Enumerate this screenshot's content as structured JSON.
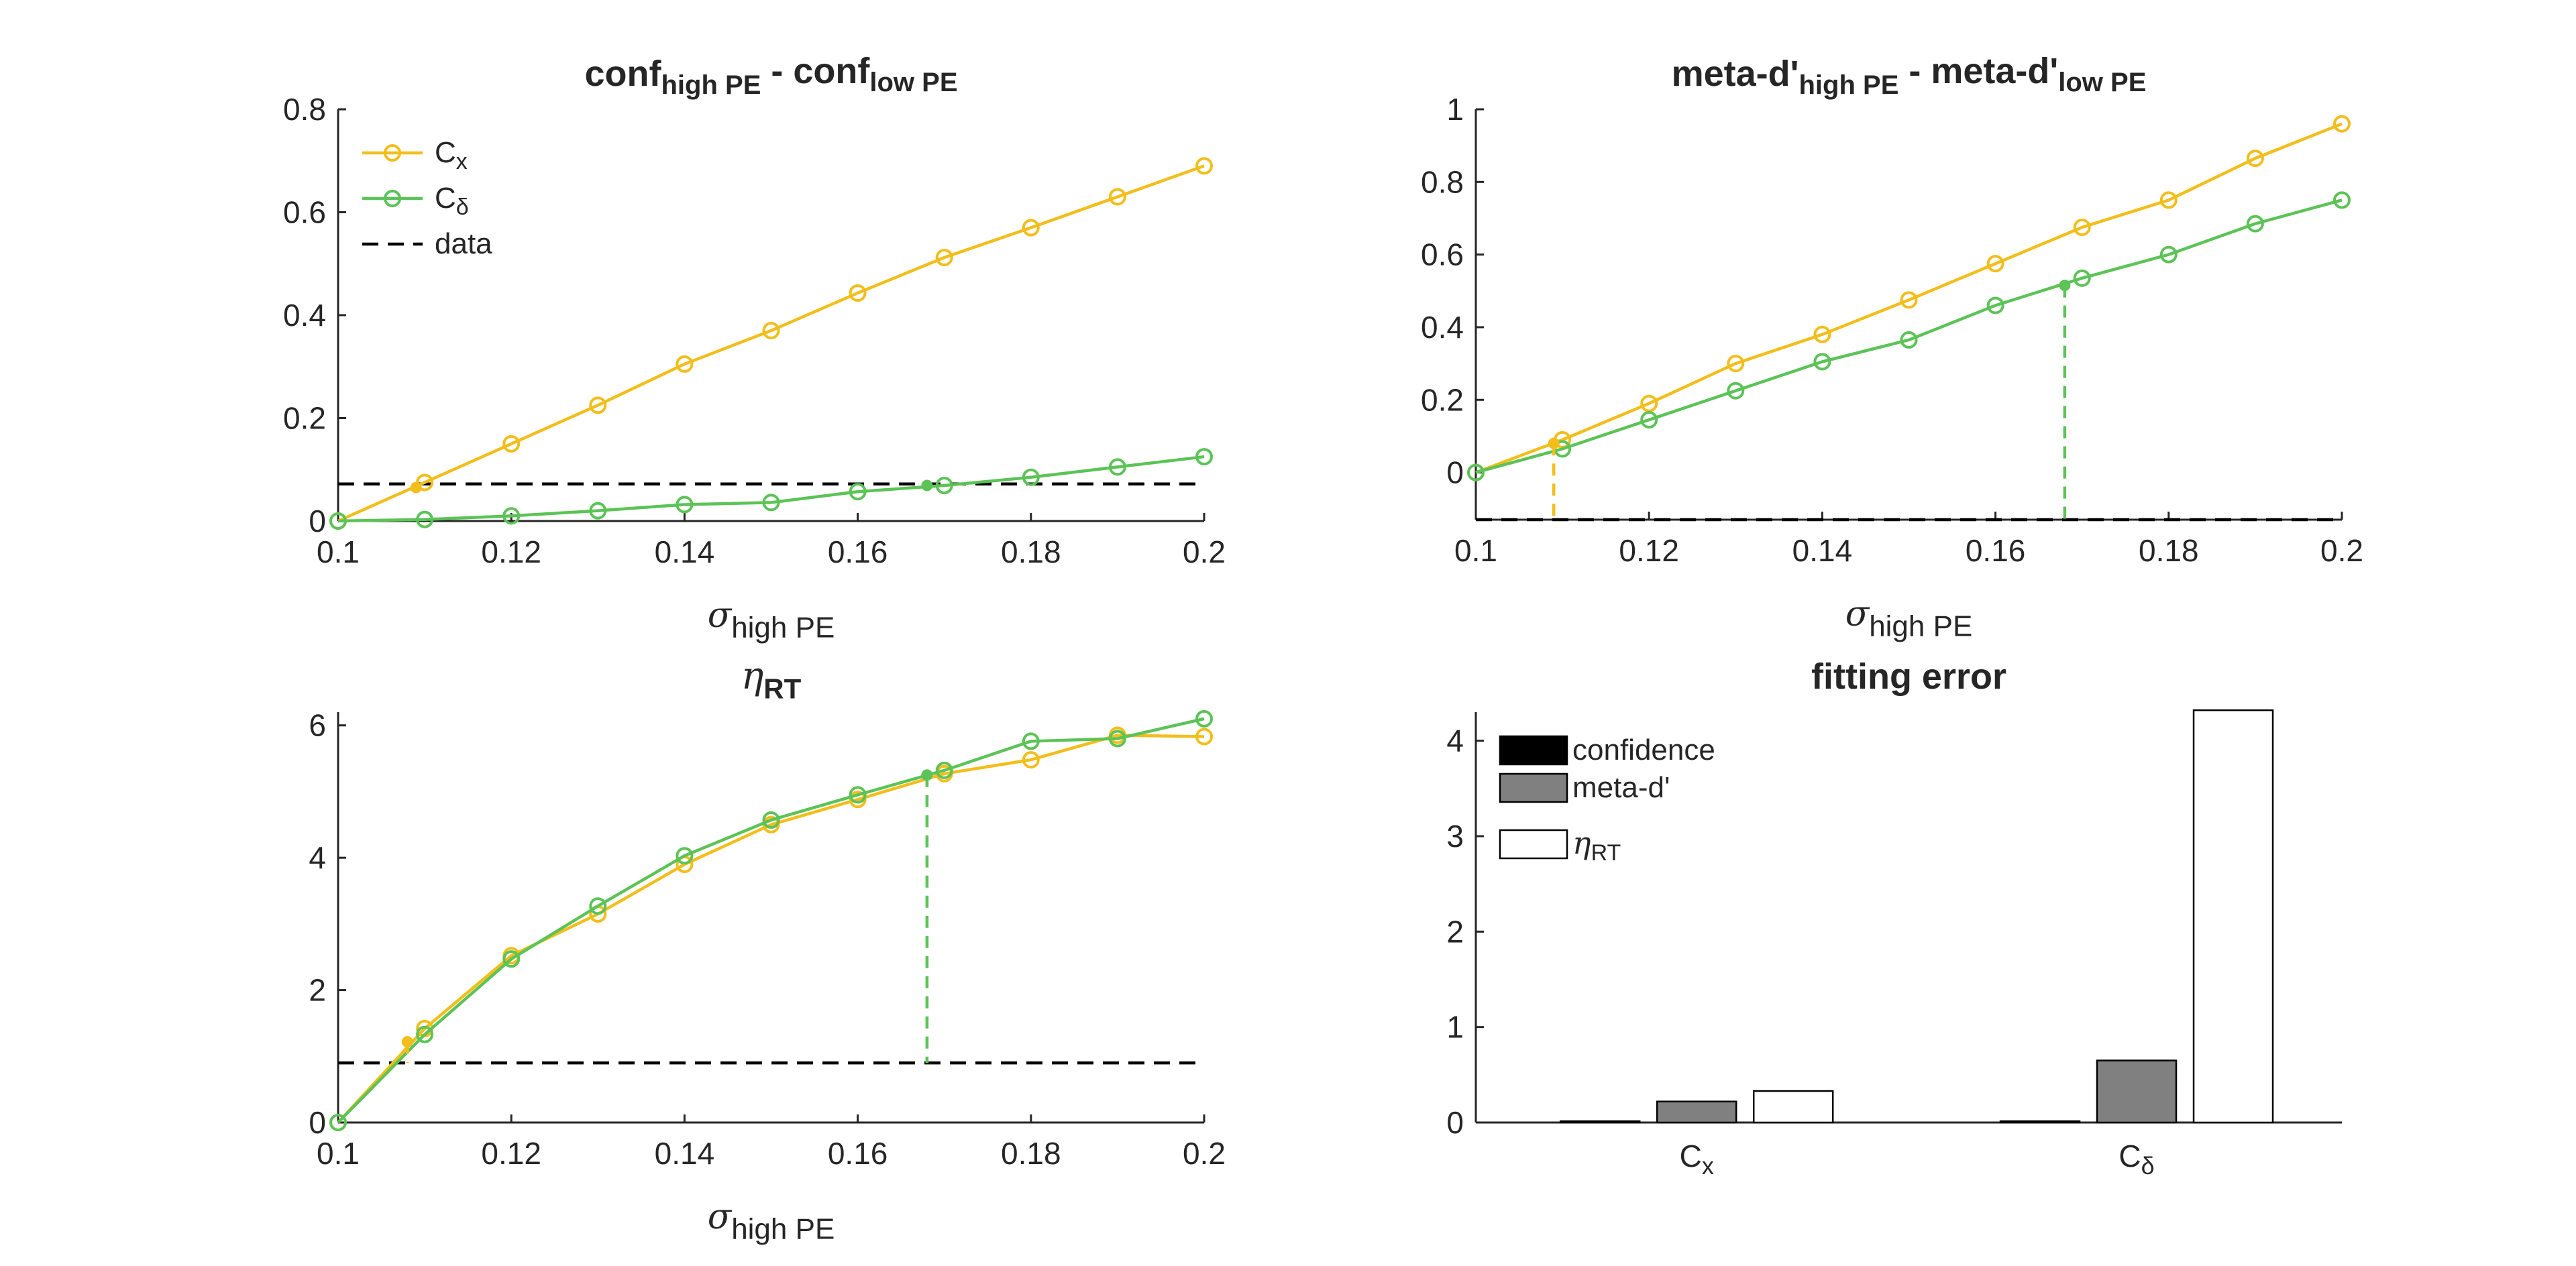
{
  "colors": {
    "cx": "#F2BE1B",
    "cdelta": "#5CC357",
    "data_line": "#000000",
    "bar_confidence": "#000000",
    "bar_metad": "#808080",
    "bar_eta": "#ffffff",
    "axis": "#262626"
  },
  "chart_data": [
    {
      "id": "conf",
      "type": "line",
      "title": {
        "main": "conf",
        "sub1": "high PE",
        "mid": " - conf",
        "sub2": "low PE"
      },
      "xlabel": {
        "sym": "σ",
        "sub": "high PE"
      },
      "ylabel": "",
      "xlim": [
        0.1,
        0.2
      ],
      "ylim": [
        0,
        0.8
      ],
      "xticks": [
        "0.1",
        "0.12",
        "0.14",
        "0.16",
        "0.18",
        "0.2"
      ],
      "xtick_values": [
        0.1,
        0.12,
        0.14,
        0.16,
        0.18,
        0.2
      ],
      "yticks": [
        "0",
        "0.2",
        "0.4",
        "0.6",
        "0.8"
      ],
      "ytick_values": [
        0,
        0.2,
        0.4,
        0.6,
        0.8
      ],
      "x": [
        0.1,
        0.11,
        0.12,
        0.13,
        0.14,
        0.15,
        0.16,
        0.17,
        0.18,
        0.19,
        0.2
      ],
      "series": [
        {
          "name": "C",
          "sub": "x",
          "key": "cx",
          "values": [
            0.0,
            0.075,
            0.15,
            0.225,
            0.305,
            0.37,
            0.443,
            0.512,
            0.57,
            0.63,
            0.69
          ]
        },
        {
          "name": "C",
          "sub": "δ",
          "key": "cdelta",
          "values": [
            0.0,
            0.003,
            0.01,
            0.02,
            0.032,
            0.036,
            0.057,
            0.069,
            0.085,
            0.105,
            0.125
          ]
        }
      ],
      "data_level": 0.072,
      "legend": {
        "position": "top-left",
        "entries": [
          {
            "label": "C",
            "sub": "x",
            "key": "cx",
            "style": "marker"
          },
          {
            "label": "C",
            "sub": "δ",
            "key": "cdelta",
            "style": "marker"
          },
          {
            "label": "data",
            "sub": "",
            "key": "data_line",
            "style": "dashed"
          }
        ]
      },
      "crossings": [
        {
          "key": "cx",
          "x": 0.109,
          "y": 0.065,
          "drop": false
        },
        {
          "key": "cdelta",
          "x": 0.168,
          "y": 0.069,
          "drop": false
        }
      ]
    },
    {
      "id": "metad",
      "type": "line",
      "title": {
        "main": "meta-d'",
        "sub1": "high PE",
        "mid": " - meta-d'",
        "sub2": "low PE"
      },
      "xlabel": {
        "sym": "σ",
        "sub": "high PE"
      },
      "ylabel": "",
      "xlim": [
        0.1,
        0.2
      ],
      "ylim": [
        -0.13,
        1.0
      ],
      "xticks": [
        "0.1",
        "0.12",
        "0.14",
        "0.16",
        "0.18",
        "0.2"
      ],
      "xtick_values": [
        0.1,
        0.12,
        0.14,
        0.16,
        0.18,
        0.2
      ],
      "yticks": [
        "0",
        "0.2",
        "0.4",
        "0.6",
        "0.8",
        "1"
      ],
      "ytick_values": [
        0,
        0.2,
        0.4,
        0.6,
        0.8,
        1.0
      ],
      "x": [
        0.1,
        0.11,
        0.12,
        0.13,
        0.14,
        0.15,
        0.16,
        0.17,
        0.18,
        0.19,
        0.2
      ],
      "series": [
        {
          "name": "C",
          "sub": "x",
          "key": "cx",
          "values": [
            0.0,
            0.09,
            0.19,
            0.3,
            0.38,
            0.475,
            0.575,
            0.675,
            0.75,
            0.865,
            0.96
          ]
        },
        {
          "name": "C",
          "sub": "δ",
          "key": "cdelta",
          "values": [
            0.0,
            0.065,
            0.145,
            0.225,
            0.305,
            0.365,
            0.46,
            0.535,
            0.6,
            0.685,
            0.75
          ]
        }
      ],
      "data_level": -0.13,
      "legend": null,
      "crossings": [
        {
          "key": "cx",
          "x": 0.109,
          "y": 0.08,
          "drop": true
        },
        {
          "key": "cdelta",
          "x": 0.168,
          "y": 0.515,
          "drop": true
        }
      ]
    },
    {
      "id": "eta",
      "type": "line",
      "title": {
        "main": "η",
        "sub1": "RT",
        "mid": "",
        "sub2": ""
      },
      "xlabel": {
        "sym": "σ",
        "sub": "high PE"
      },
      "ylabel": "",
      "xlim": [
        0.1,
        0.2
      ],
      "ylim": [
        0,
        6.2
      ],
      "xticks": [
        "0.1",
        "0.12",
        "0.14",
        "0.16",
        "0.18",
        "0.2"
      ],
      "xtick_values": [
        0.1,
        0.12,
        0.14,
        0.16,
        0.18,
        0.2
      ],
      "yticks": [
        "0",
        "2",
        "4",
        "6"
      ],
      "ytick_values": [
        0,
        2,
        4,
        6
      ],
      "x": [
        0.1,
        0.11,
        0.12,
        0.13,
        0.14,
        0.15,
        0.16,
        0.17,
        0.18,
        0.19,
        0.2
      ],
      "series": [
        {
          "name": "C",
          "sub": "x",
          "key": "cx",
          "values": [
            0.0,
            1.42,
            2.52,
            3.15,
            3.9,
            4.5,
            4.88,
            5.27,
            5.48,
            5.85,
            5.83
          ]
        },
        {
          "name": "C",
          "sub": "δ",
          "key": "cdelta",
          "values": [
            0.0,
            1.33,
            2.47,
            3.27,
            4.03,
            4.57,
            4.95,
            5.32,
            5.76,
            5.8,
            6.1
          ]
        }
      ],
      "data_level": 0.9,
      "legend": null,
      "crossings": [
        {
          "key": "cx",
          "x": 0.108,
          "y": 1.22,
          "drop": true
        },
        {
          "key": "cdelta",
          "x": 0.168,
          "y": 5.25,
          "drop": true
        }
      ]
    },
    {
      "id": "fit",
      "type": "bar",
      "title": {
        "main": "fitting error",
        "sub1": "",
        "mid": "",
        "sub2": ""
      },
      "ylabel": "",
      "ylim": [
        0,
        4.3
      ],
      "yticks": [
        "0",
        "1",
        "2",
        "3",
        "4"
      ],
      "ytick_values": [
        0,
        1,
        2,
        3,
        4
      ],
      "categories": [
        {
          "label": "C",
          "sub": "x"
        },
        {
          "label": "C",
          "sub": "δ"
        }
      ],
      "series": [
        {
          "name": "confidence",
          "sub": "",
          "key": "bar_confidence",
          "values": [
            0.0,
            0.0
          ]
        },
        {
          "name": "meta-d'",
          "sub": "",
          "key": "bar_metad",
          "values": [
            0.22,
            0.65
          ]
        },
        {
          "name": "η",
          "sub": "RT",
          "key": "bar_eta",
          "values": [
            0.33,
            4.32
          ]
        }
      ],
      "legend": {
        "position": "top-left"
      }
    }
  ]
}
